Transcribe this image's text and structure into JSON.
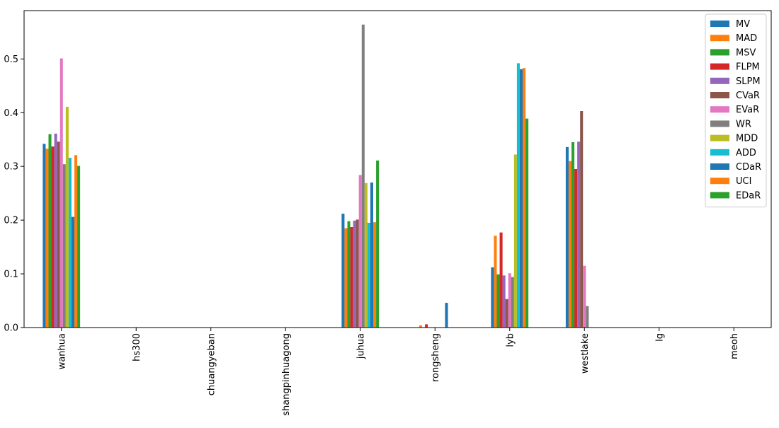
{
  "chart_data": {
    "type": "bar",
    "categories": [
      "wanhua",
      "hs300",
      "chuangyeban",
      "shangpinhuagong",
      "juhua",
      "rongsheng",
      "lyb",
      "westlake",
      "lg",
      "meoh"
    ],
    "ylim": [
      0,
      0.59
    ],
    "yticks": [
      0.0,
      0.1,
      0.2,
      0.3,
      0.4,
      0.5
    ],
    "ytick_labels": [
      "0.0",
      "0.1",
      "0.2",
      "0.3",
      "0.4",
      "0.5"
    ],
    "legend_position": "top-right",
    "grid": false,
    "series": [
      {
        "name": "MV",
        "color": "#1f77b4",
        "values": [
          0.342,
          0,
          0,
          0,
          0.212,
          0,
          0.112,
          0.336,
          0,
          0
        ]
      },
      {
        "name": "MAD",
        "color": "#ff7f0e",
        "values": [
          0.333,
          0,
          0,
          0,
          0.185,
          0.004,
          0.171,
          0.31,
          0,
          0
        ]
      },
      {
        "name": "MSV",
        "color": "#2ca02c",
        "values": [
          0.36,
          0,
          0,
          0,
          0.198,
          0,
          0.099,
          0.345,
          0,
          0
        ]
      },
      {
        "name": "FLPM",
        "color": "#d62728",
        "values": [
          0.337,
          0,
          0,
          0,
          0.187,
          0.006,
          0.177,
          0.295,
          0,
          0
        ]
      },
      {
        "name": "SLPM",
        "color": "#9467bd",
        "values": [
          0.361,
          0,
          0,
          0,
          0.199,
          0,
          0.097,
          0.346,
          0,
          0
        ]
      },
      {
        "name": "CVaR",
        "color": "#8c564b",
        "values": [
          0.346,
          0,
          0,
          0,
          0.201,
          0,
          0.053,
          0.403,
          0,
          0
        ]
      },
      {
        "name": "EVaR",
        "color": "#e377c2",
        "values": [
          0.501,
          0,
          0,
          0,
          0.284,
          0,
          0.101,
          0.115,
          0,
          0
        ]
      },
      {
        "name": "WR",
        "color": "#7f7f7f",
        "values": [
          0.304,
          0,
          0,
          0,
          0.564,
          0,
          0.094,
          0.04,
          0,
          0
        ]
      },
      {
        "name": "MDD",
        "color": "#bcbd22",
        "values": [
          0.411,
          0,
          0,
          0,
          0.269,
          0,
          0.322,
          0,
          0,
          0
        ]
      },
      {
        "name": "ADD",
        "color": "#17becf",
        "values": [
          0.316,
          0,
          0,
          0,
          0.195,
          0,
          0.492,
          0,
          0,
          0
        ]
      },
      {
        "name": "CDaR",
        "color": "#1f77b4",
        "values": [
          0.206,
          0,
          0,
          0,
          0.27,
          0.046,
          0.481,
          0,
          0,
          0
        ]
      },
      {
        "name": "UCI",
        "color": "#ff7f0e",
        "values": [
          0.321,
          0,
          0,
          0,
          0.196,
          0,
          0.483,
          0,
          0,
          0
        ]
      },
      {
        "name": "EDaR",
        "color": "#2ca02c",
        "values": [
          0.301,
          0,
          0,
          0,
          0.311,
          0,
          0.389,
          0,
          0,
          0
        ]
      }
    ]
  }
}
